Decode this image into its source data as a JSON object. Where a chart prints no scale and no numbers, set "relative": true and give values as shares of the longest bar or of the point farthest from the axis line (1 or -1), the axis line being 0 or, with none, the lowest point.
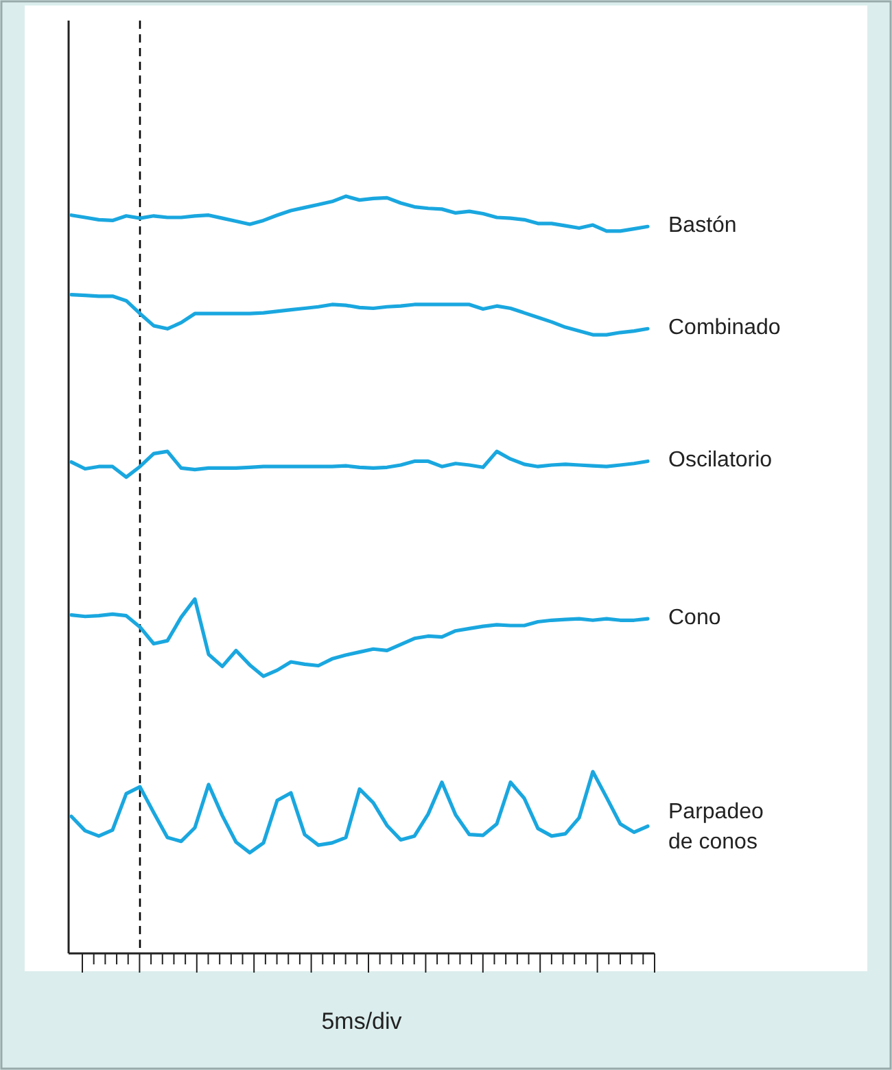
{
  "chart_data": {
    "type": "line",
    "relative": true,
    "xlabel": "5ms/div",
    "legend": false,
    "line_style": "solid",
    "categories": [
      null,
      null,
      null,
      null,
      null,
      null,
      null,
      null,
      null,
      null,
      null,
      null,
      null,
      null,
      null,
      null,
      null,
      null,
      null,
      null,
      null,
      null,
      null,
      null,
      null,
      null,
      null,
      null,
      null,
      null,
      null,
      null,
      null,
      null,
      null,
      null,
      null,
      null,
      null,
      null,
      null,
      null,
      null
    ],
    "series": [
      {
        "name": "Bastón",
        "color": "#1aa7df",
        "values": [
          0.975,
          0.972,
          0.969,
          0.968,
          0.974,
          0.971,
          0.974,
          0.972,
          0.972,
          0.974,
          0.975,
          0.971,
          0.967,
          0.963,
          0.968,
          0.975,
          0.981,
          0.985,
          0.989,
          0.993,
          1,
          0.995,
          0.997,
          0.998,
          0.991,
          0.986,
          0.984,
          0.983,
          0.978,
          0.98,
          0.977,
          0.972,
          0.971,
          0.969,
          0.964,
          0.964,
          0.961,
          0.958,
          0.962,
          0.954,
          0.954,
          0.957,
          0.96
        ]
      },
      {
        "name": "Combinado",
        "color": "#1aa7df",
        "values": [
          0.87,
          0.869,
          0.868,
          0.868,
          0.862,
          0.845,
          0.829,
          0.825,
          0.833,
          0.845,
          0.845,
          0.845,
          0.845,
          0.845,
          0.846,
          0.848,
          0.85,
          0.852,
          0.854,
          0.857,
          0.856,
          0.853,
          0.852,
          0.854,
          0.855,
          0.857,
          0.857,
          0.857,
          0.857,
          0.857,
          0.851,
          0.855,
          0.852,
          0.846,
          0.84,
          0.834,
          0.827,
          0.822,
          0.817,
          0.817,
          0.82,
          0.822,
          0.825
        ]
      },
      {
        "name": "Oscilatorio",
        "color": "#1aa7df",
        "values": [
          0.649,
          0.64,
          0.643,
          0.643,
          0.629,
          0.643,
          0.66,
          0.663,
          0.641,
          0.639,
          0.641,
          0.641,
          0.641,
          0.642,
          0.643,
          0.643,
          0.643,
          0.643,
          0.643,
          0.643,
          0.644,
          0.642,
          0.641,
          0.642,
          0.645,
          0.65,
          0.65,
          0.643,
          0.647,
          0.645,
          0.642,
          0.663,
          0.653,
          0.646,
          0.643,
          0.645,
          0.646,
          0.645,
          0.644,
          0.643,
          0.645,
          0.647,
          0.65
        ]
      },
      {
        "name": "Cono",
        "color": "#1aa7df",
        "values": [
          0.447,
          0.445,
          0.446,
          0.448,
          0.446,
          0.431,
          0.409,
          0.413,
          0.444,
          0.468,
          0.395,
          0.379,
          0.4,
          0.381,
          0.366,
          0.374,
          0.385,
          0.382,
          0.38,
          0.389,
          0.394,
          0.398,
          0.402,
          0.4,
          0.408,
          0.416,
          0.419,
          0.418,
          0.426,
          0.429,
          0.432,
          0.434,
          0.433,
          0.433,
          0.438,
          0.44,
          0.441,
          0.442,
          0.44,
          0.442,
          0.44,
          0.44,
          0.442
        ]
      },
      {
        "name": "Parpadeo de conos",
        "color": "#1aa7df",
        "values": [
          0.181,
          0.162,
          0.155,
          0.163,
          0.211,
          0.22,
          0.186,
          0.153,
          0.148,
          0.166,
          0.223,
          0.182,
          0.147,
          0.133,
          0.146,
          0.202,
          0.212,
          0.157,
          0.143,
          0.146,
          0.153,
          0.217,
          0.199,
          0.169,
          0.15,
          0.155,
          0.184,
          0.226,
          0.183,
          0.157,
          0.156,
          0.171,
          0.226,
          0.205,
          0.165,
          0.155,
          0.158,
          0.179,
          0.24,
          0.206,
          0.171,
          0.16,
          0.168
        ]
      }
    ]
  }
}
